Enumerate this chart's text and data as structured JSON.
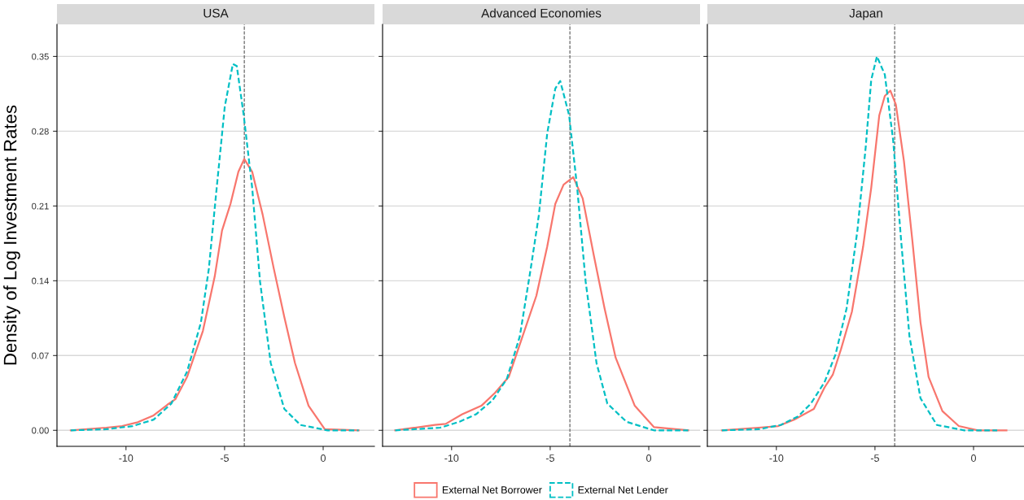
{
  "chart_data": [
    {
      "type": "line",
      "title": "USA",
      "ylabel": "Density of Log Investment Rates",
      "xlim": [
        -13.5,
        2.6
      ],
      "ylim": [
        -0.015,
        0.38
      ],
      "xticks": [
        -10,
        -5,
        0
      ],
      "yticks": [
        {
          "value": 0,
          "label": "0.00"
        },
        {
          "value": 0.07,
          "label": "0.07"
        },
        {
          "value": 0.14,
          "label": "0.14"
        },
        {
          "value": 0.21,
          "label": "0.21"
        },
        {
          "value": 0.28,
          "label": "0.28"
        },
        {
          "value": 0.35,
          "label": "0.35"
        }
      ],
      "grid": "y",
      "ref_lines": [
        {
          "axis": "x",
          "value": -4,
          "color": "#555555",
          "line_style": "dashed"
        }
      ],
      "series": [
        {
          "color": "#f8766d",
          "line_style": "solid",
          "x": [
            -12.8,
            -11.0,
            -10.2,
            -9.4,
            -8.6,
            -7.9,
            -7.5,
            -6.9,
            -6.1,
            -5.5,
            -5.13,
            -4.7,
            -4.3,
            -4.0,
            -3.6,
            -3.07,
            -2.5,
            -1.97,
            -1.43,
            -0.74,
            0.08,
            1.8
          ],
          "values": [
            0,
            0.0025,
            0.004,
            0.0076,
            0.014,
            0.024,
            0.029,
            0.05,
            0.093,
            0.144,
            0.187,
            0.212,
            0.242,
            0.254,
            0.242,
            0.202,
            0.151,
            0.106,
            0.063,
            0.023,
            0.001,
            0
          ]
        },
        {
          "color": "#00bfc4",
          "line_style": "dashed",
          "x": [
            -12.8,
            -11.0,
            -9.66,
            -8.6,
            -7.7,
            -6.9,
            -6.2,
            -5.8,
            -5.4,
            -4.99,
            -4.58,
            -4.38,
            -4.03,
            -3.6,
            -3.2,
            -2.66,
            -1.97,
            -1.15,
            0.22,
            1.8
          ],
          "values": [
            0,
            0.001,
            0.004,
            0.01,
            0.025,
            0.055,
            0.101,
            0.151,
            0.227,
            0.303,
            0.343,
            0.341,
            0.295,
            0.227,
            0.139,
            0.063,
            0.02,
            0.005,
            0,
            0
          ]
        }
      ]
    },
    {
      "type": "line",
      "title": "Advanced Economies",
      "xlim": [
        -13.5,
        2.6
      ],
      "ylim": [
        -0.015,
        0.38
      ],
      "xticks": [
        -10,
        -5,
        0
      ],
      "yticks": [
        {
          "value": 0,
          "label": null
        },
        {
          "value": 0.07,
          "label": null
        },
        {
          "value": 0.14,
          "label": null
        },
        {
          "value": 0.21,
          "label": null
        },
        {
          "value": 0.28,
          "label": null
        },
        {
          "value": 0.35,
          "label": null
        }
      ],
      "tick_labels": "x",
      "grid": "y",
      "legend": "bottom",
      "ref_lines": [
        {
          "axis": "x",
          "value": -4,
          "color": "#555555",
          "line_style": "dashed"
        }
      ],
      "series": [
        {
          "name": "External Net Borrower",
          "color": "#f8766d",
          "line_style": "solid",
          "x": [
            -12.86,
            -10.85,
            -10.3,
            -9.46,
            -8.49,
            -7.8,
            -7.1,
            -6.4,
            -5.7,
            -5.15,
            -4.74,
            -4.32,
            -3.83,
            -3.35,
            -2.79,
            -2.24,
            -1.68,
            -0.71,
            0.26,
            2.0
          ],
          "values": [
            0,
            0.005,
            0.006,
            0.015,
            0.023,
            0.035,
            0.05,
            0.088,
            0.126,
            0.172,
            0.212,
            0.23,
            0.237,
            0.217,
            0.164,
            0.114,
            0.068,
            0.023,
            0.003,
            0
          ]
        },
        {
          "name": "External Net Lender",
          "color": "#00bfc4",
          "line_style": "dashed",
          "x": [
            -12.86,
            -10.57,
            -9.6,
            -8.76,
            -7.93,
            -7.2,
            -6.54,
            -5.99,
            -5.57,
            -5.15,
            -4.74,
            -4.49,
            -4.04,
            -3.63,
            -3.2,
            -2.65,
            -2.1,
            -1.13,
            0.26,
            2.0
          ],
          "values": [
            0,
            0.0025,
            0.008,
            0.015,
            0.028,
            0.048,
            0.088,
            0.151,
            0.202,
            0.278,
            0.32,
            0.327,
            0.295,
            0.227,
            0.139,
            0.063,
            0.025,
            0.008,
            0,
            0
          ]
        }
      ]
    },
    {
      "type": "line",
      "title": "Japan",
      "xlim": [
        -13.5,
        2.6
      ],
      "ylim": [
        -0.015,
        0.38
      ],
      "xticks": [
        -10,
        -5,
        0
      ],
      "yticks": [
        {
          "value": 0,
          "label": null
        },
        {
          "value": 0.07,
          "label": null
        },
        {
          "value": 0.14,
          "label": null
        },
        {
          "value": 0.21,
          "label": null
        },
        {
          "value": 0.28,
          "label": null
        },
        {
          "value": 0.35,
          "label": null
        }
      ],
      "tick_labels": "x",
      "grid": "y",
      "ref_lines": [
        {
          "axis": "x",
          "value": -4,
          "color": "#555555",
          "line_style": "dashed"
        }
      ],
      "series": [
        {
          "color": "#f8766d",
          "line_style": "solid",
          "x": [
            -12.76,
            -10.9,
            -9.9,
            -9.1,
            -8.1,
            -7.56,
            -7.14,
            -6.72,
            -6.17,
            -5.6,
            -5.19,
            -4.78,
            -4.5,
            -4.22,
            -3.94,
            -3.53,
            -3.1,
            -2.69,
            -2.28,
            -1.58,
            -0.75,
            0.22,
            1.67
          ],
          "values": [
            0,
            0.0025,
            0.004,
            0.01,
            0.02,
            0.04,
            0.052,
            0.076,
            0.111,
            0.172,
            0.227,
            0.295,
            0.313,
            0.318,
            0.305,
            0.252,
            0.177,
            0.101,
            0.05,
            0.018,
            0.004,
            0,
            0
          ]
        },
        {
          "color": "#00bfc4",
          "line_style": "dashed",
          "x": [
            -12.76,
            -10.9,
            -9.78,
            -8.9,
            -8.25,
            -7.56,
            -7.0,
            -6.44,
            -5.89,
            -5.47,
            -5.19,
            -4.9,
            -4.5,
            -4.08,
            -3.67,
            -3.25,
            -2.69,
            -1.86,
            -0.47,
            1.2
          ],
          "values": [
            0,
            0.001,
            0.005,
            0.013,
            0.025,
            0.045,
            0.071,
            0.114,
            0.187,
            0.265,
            0.328,
            0.35,
            0.333,
            0.272,
            0.177,
            0.088,
            0.03,
            0.005,
            0,
            0
          ]
        }
      ]
    }
  ]
}
